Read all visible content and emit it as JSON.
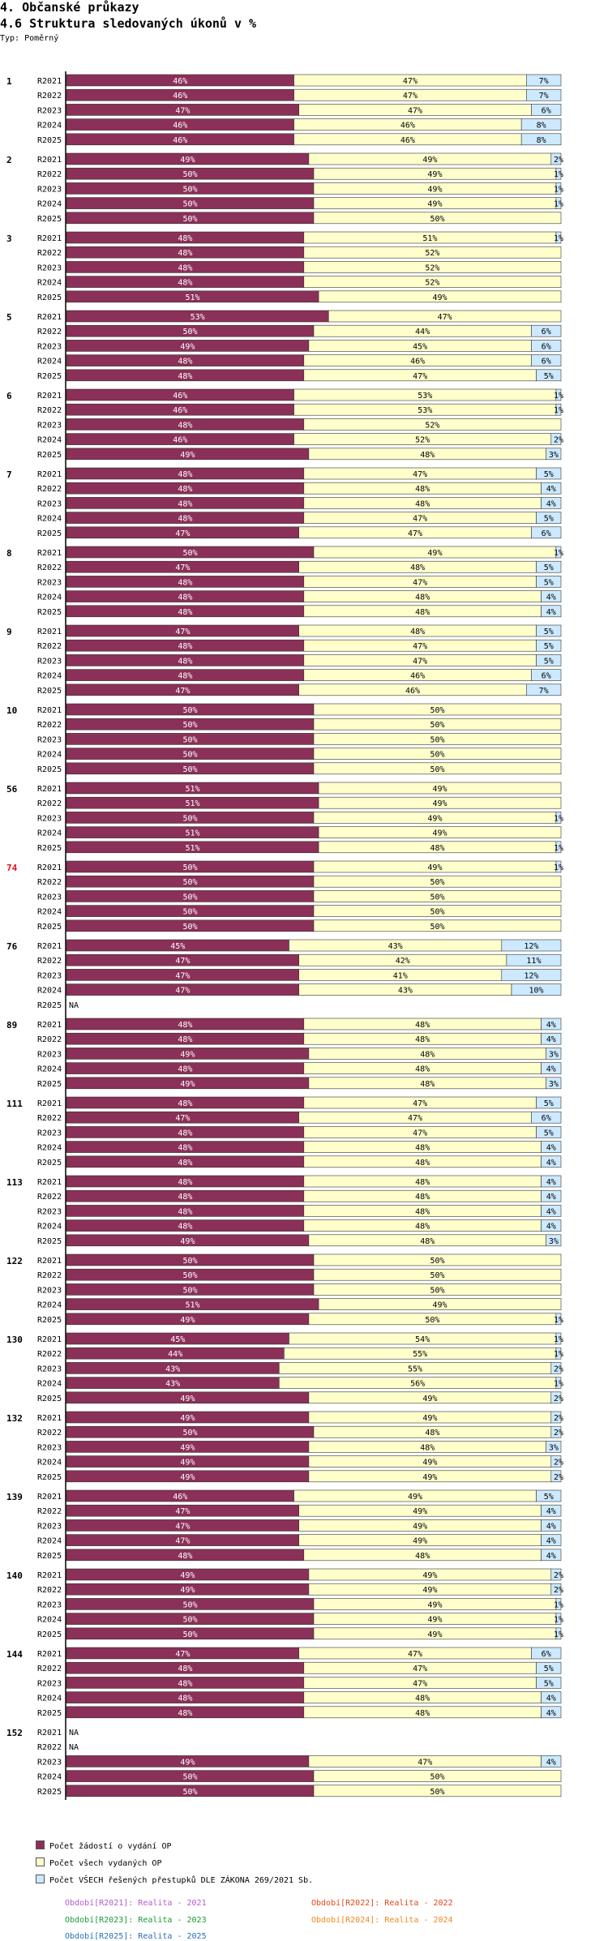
{
  "header": {
    "title": "4. Občanské průkazy",
    "subtitle": "4.6 Struktura sledovaných úkonů v %",
    "type_label": "Typ: Poměrný"
  },
  "colors": {
    "zadosti": "#8b3058",
    "vydane": "#ffffcc",
    "prestupky": "#cce9ff",
    "highlight_group": "#e0101a",
    "p2021": "#b35ad2",
    "p2022": "#e0481a",
    "p2023": "#1a9a3a",
    "p2024": "#f08a20",
    "p2025": "#2a6fb5"
  },
  "legend": {
    "series": [
      {
        "key": "zadosti",
        "label": "Počet žádostí o vydání OP"
      },
      {
        "key": "vydane",
        "label": "Počet všech vydaných OP"
      },
      {
        "key": "prestupky",
        "label": "Počet VŠECH řešených přestupků DLE ZÁKONA  269/2021 Sb."
      }
    ],
    "periods": [
      {
        "key": "p2021",
        "label": "Období[R2021]: Realita - 2021"
      },
      {
        "key": "p2022",
        "label": "Období[R2022]: Realita - 2022"
      },
      {
        "key": "p2023",
        "label": "Období[R2023]: Realita - 2023"
      },
      {
        "key": "p2024",
        "label": "Období[R2024]: Realita - 2024"
      },
      {
        "key": "p2025",
        "label": "Období[R2025]: Realita - 2025"
      }
    ]
  },
  "chart_data": {
    "type": "bar",
    "stacked": true,
    "orientation": "horizontal",
    "unit": "%",
    "title": "4.6 Struktura sledovaných úkonů v %",
    "series_names": [
      "Počet žádostí o vydání OP",
      "Počet všech vydaných OP",
      "Počet VŠECH řešených přestupků DLE ZÁKONA  269/2021 Sb."
    ],
    "na_label": "NA",
    "highlight_group": "74",
    "groups": [
      {
        "id": "1",
        "rows": [
          {
            "period": "R2021",
            "values": [
              46,
              47,
              7
            ]
          },
          {
            "period": "R2022",
            "values": [
              46,
              47,
              7
            ]
          },
          {
            "period": "R2023",
            "values": [
              47,
              47,
              6
            ]
          },
          {
            "period": "R2024",
            "values": [
              46,
              46,
              8
            ]
          },
          {
            "period": "R2025",
            "values": [
              46,
              46,
              8
            ]
          }
        ]
      },
      {
        "id": "2",
        "rows": [
          {
            "period": "R2021",
            "values": [
              49,
              49,
              2
            ]
          },
          {
            "period": "R2022",
            "values": [
              50,
              49,
              1
            ]
          },
          {
            "period": "R2023",
            "values": [
              50,
              49,
              1
            ]
          },
          {
            "period": "R2024",
            "values": [
              50,
              49,
              1
            ]
          },
          {
            "period": "R2025",
            "values": [
              50,
              50,
              0
            ]
          }
        ]
      },
      {
        "id": "3",
        "rows": [
          {
            "period": "R2021",
            "values": [
              48,
              51,
              1
            ]
          },
          {
            "period": "R2022",
            "values": [
              48,
              52,
              0
            ]
          },
          {
            "period": "R2023",
            "values": [
              48,
              52,
              0
            ]
          },
          {
            "period": "R2024",
            "values": [
              48,
              52,
              0
            ]
          },
          {
            "period": "R2025",
            "values": [
              51,
              49,
              0
            ]
          }
        ]
      },
      {
        "id": "5",
        "rows": [
          {
            "period": "R2021",
            "values": [
              53,
              47,
              0
            ]
          },
          {
            "period": "R2022",
            "values": [
              50,
              44,
              6
            ]
          },
          {
            "period": "R2023",
            "values": [
              49,
              45,
              6
            ]
          },
          {
            "period": "R2024",
            "values": [
              48,
              46,
              6
            ]
          },
          {
            "period": "R2025",
            "values": [
              48,
              47,
              5
            ]
          }
        ]
      },
      {
        "id": "6",
        "rows": [
          {
            "period": "R2021",
            "values": [
              46,
              53,
              1
            ]
          },
          {
            "period": "R2022",
            "values": [
              46,
              53,
              1
            ]
          },
          {
            "period": "R2023",
            "values": [
              48,
              52,
              0
            ]
          },
          {
            "period": "R2024",
            "values": [
              46,
              52,
              2
            ]
          },
          {
            "period": "R2025",
            "values": [
              49,
              48,
              3
            ]
          }
        ]
      },
      {
        "id": "7",
        "rows": [
          {
            "period": "R2021",
            "values": [
              48,
              47,
              5
            ]
          },
          {
            "period": "R2022",
            "values": [
              48,
              48,
              4
            ]
          },
          {
            "period": "R2023",
            "values": [
              48,
              48,
              4
            ]
          },
          {
            "period": "R2024",
            "values": [
              48,
              47,
              5
            ]
          },
          {
            "period": "R2025",
            "values": [
              47,
              47,
              6
            ]
          }
        ]
      },
      {
        "id": "8",
        "rows": [
          {
            "period": "R2021",
            "values": [
              50,
              49,
              1
            ]
          },
          {
            "period": "R2022",
            "values": [
              47,
              48,
              5
            ]
          },
          {
            "period": "R2023",
            "values": [
              48,
              47,
              5
            ]
          },
          {
            "period": "R2024",
            "values": [
              48,
              48,
              4
            ]
          },
          {
            "period": "R2025",
            "values": [
              48,
              48,
              4
            ]
          }
        ]
      },
      {
        "id": "9",
        "rows": [
          {
            "period": "R2021",
            "values": [
              47,
              48,
              5
            ]
          },
          {
            "period": "R2022",
            "values": [
              48,
              47,
              5
            ]
          },
          {
            "period": "R2023",
            "values": [
              48,
              47,
              5
            ]
          },
          {
            "period": "R2024",
            "values": [
              48,
              46,
              6
            ]
          },
          {
            "period": "R2025",
            "values": [
              47,
              46,
              7
            ]
          }
        ]
      },
      {
        "id": "10",
        "rows": [
          {
            "period": "R2021",
            "values": [
              50,
              50,
              0
            ]
          },
          {
            "period": "R2022",
            "values": [
              50,
              50,
              0
            ]
          },
          {
            "period": "R2023",
            "values": [
              50,
              50,
              0
            ]
          },
          {
            "period": "R2024",
            "values": [
              50,
              50,
              0
            ]
          },
          {
            "period": "R2025",
            "values": [
              50,
              50,
              0
            ]
          }
        ]
      },
      {
        "id": "56",
        "rows": [
          {
            "period": "R2021",
            "values": [
              51,
              49,
              0
            ]
          },
          {
            "period": "R2022",
            "values": [
              51,
              49,
              0
            ]
          },
          {
            "period": "R2023",
            "values": [
              50,
              49,
              1
            ]
          },
          {
            "period": "R2024",
            "values": [
              51,
              49,
              0
            ]
          },
          {
            "period": "R2025",
            "values": [
              51,
              48,
              1
            ]
          }
        ]
      },
      {
        "id": "74",
        "rows": [
          {
            "period": "R2021",
            "values": [
              50,
              49,
              1
            ]
          },
          {
            "period": "R2022",
            "values": [
              50,
              50,
              0
            ]
          },
          {
            "period": "R2023",
            "values": [
              50,
              50,
              0
            ]
          },
          {
            "period": "R2024",
            "values": [
              50,
              50,
              0
            ]
          },
          {
            "period": "R2025",
            "values": [
              50,
              50,
              0
            ]
          }
        ]
      },
      {
        "id": "76",
        "rows": [
          {
            "period": "R2021",
            "values": [
              45,
              43,
              12
            ]
          },
          {
            "period": "R2022",
            "values": [
              47,
              42,
              11
            ]
          },
          {
            "period": "R2023",
            "values": [
              47,
              41,
              12
            ]
          },
          {
            "period": "R2024",
            "values": [
              47,
              43,
              10
            ]
          },
          {
            "period": "R2025",
            "values": null
          }
        ]
      },
      {
        "id": "89",
        "rows": [
          {
            "period": "R2021",
            "values": [
              48,
              48,
              4
            ]
          },
          {
            "period": "R2022",
            "values": [
              48,
              48,
              4
            ]
          },
          {
            "period": "R2023",
            "values": [
              49,
              48,
              3
            ]
          },
          {
            "period": "R2024",
            "values": [
              48,
              48,
              4
            ]
          },
          {
            "period": "R2025",
            "values": [
              49,
              48,
              3
            ]
          }
        ]
      },
      {
        "id": "111",
        "rows": [
          {
            "period": "R2021",
            "values": [
              48,
              47,
              5
            ]
          },
          {
            "period": "R2022",
            "values": [
              47,
              47,
              6
            ]
          },
          {
            "period": "R2023",
            "values": [
              48,
              47,
              5
            ]
          },
          {
            "period": "R2024",
            "values": [
              48,
              48,
              4
            ]
          },
          {
            "period": "R2025",
            "values": [
              48,
              48,
              4
            ]
          }
        ]
      },
      {
        "id": "113",
        "rows": [
          {
            "period": "R2021",
            "values": [
              48,
              48,
              4
            ]
          },
          {
            "period": "R2022",
            "values": [
              48,
              48,
              4
            ]
          },
          {
            "period": "R2023",
            "values": [
              48,
              48,
              4
            ]
          },
          {
            "period": "R2024",
            "values": [
              48,
              48,
              4
            ]
          },
          {
            "period": "R2025",
            "values": [
              49,
              48,
              3
            ]
          }
        ]
      },
      {
        "id": "122",
        "rows": [
          {
            "period": "R2021",
            "values": [
              50,
              50,
              0
            ]
          },
          {
            "period": "R2022",
            "values": [
              50,
              50,
              0
            ]
          },
          {
            "period": "R2023",
            "values": [
              50,
              50,
              0
            ]
          },
          {
            "period": "R2024",
            "values": [
              51,
              49,
              0
            ]
          },
          {
            "period": "R2025",
            "values": [
              49,
              50,
              1
            ]
          }
        ]
      },
      {
        "id": "130",
        "rows": [
          {
            "period": "R2021",
            "values": [
              45,
              54,
              1
            ]
          },
          {
            "period": "R2022",
            "values": [
              44,
              55,
              1
            ]
          },
          {
            "period": "R2023",
            "values": [
              43,
              55,
              2
            ]
          },
          {
            "period": "R2024",
            "values": [
              43,
              56,
              1
            ]
          },
          {
            "period": "R2025",
            "values": [
              49,
              49,
              2
            ]
          }
        ]
      },
      {
        "id": "132",
        "rows": [
          {
            "period": "R2021",
            "values": [
              49,
              49,
              2
            ]
          },
          {
            "period": "R2022",
            "values": [
              50,
              48,
              2
            ]
          },
          {
            "period": "R2023",
            "values": [
              49,
              48,
              3
            ]
          },
          {
            "period": "R2024",
            "values": [
              49,
              49,
              2
            ]
          },
          {
            "period": "R2025",
            "values": [
              49,
              49,
              2
            ]
          }
        ]
      },
      {
        "id": "139",
        "rows": [
          {
            "period": "R2021",
            "values": [
              46,
              49,
              5
            ]
          },
          {
            "period": "R2022",
            "values": [
              47,
              49,
              4
            ]
          },
          {
            "period": "R2023",
            "values": [
              47,
              49,
              4
            ]
          },
          {
            "period": "R2024",
            "values": [
              47,
              49,
              4
            ]
          },
          {
            "period": "R2025",
            "values": [
              48,
              48,
              4
            ]
          }
        ]
      },
      {
        "id": "140",
        "rows": [
          {
            "period": "R2021",
            "values": [
              49,
              49,
              2
            ]
          },
          {
            "period": "R2022",
            "values": [
              49,
              49,
              2
            ]
          },
          {
            "period": "R2023",
            "values": [
              50,
              49,
              1
            ]
          },
          {
            "period": "R2024",
            "values": [
              50,
              49,
              1
            ]
          },
          {
            "period": "R2025",
            "values": [
              50,
              49,
              1
            ]
          }
        ]
      },
      {
        "id": "144",
        "rows": [
          {
            "period": "R2021",
            "values": [
              47,
              47,
              6
            ]
          },
          {
            "period": "R2022",
            "values": [
              48,
              47,
              5
            ]
          },
          {
            "period": "R2023",
            "values": [
              48,
              47,
              5
            ]
          },
          {
            "period": "R2024",
            "values": [
              48,
              48,
              4
            ]
          },
          {
            "period": "R2025",
            "values": [
              48,
              48,
              4
            ]
          }
        ]
      },
      {
        "id": "152",
        "rows": [
          {
            "period": "R2021",
            "values": null
          },
          {
            "period": "R2022",
            "values": null
          },
          {
            "period": "R2023",
            "values": [
              49,
              47,
              4
            ]
          },
          {
            "period": "R2024",
            "values": [
              50,
              50,
              0
            ]
          },
          {
            "period": "R2025",
            "values": [
              50,
              50,
              0
            ]
          }
        ]
      }
    ]
  }
}
